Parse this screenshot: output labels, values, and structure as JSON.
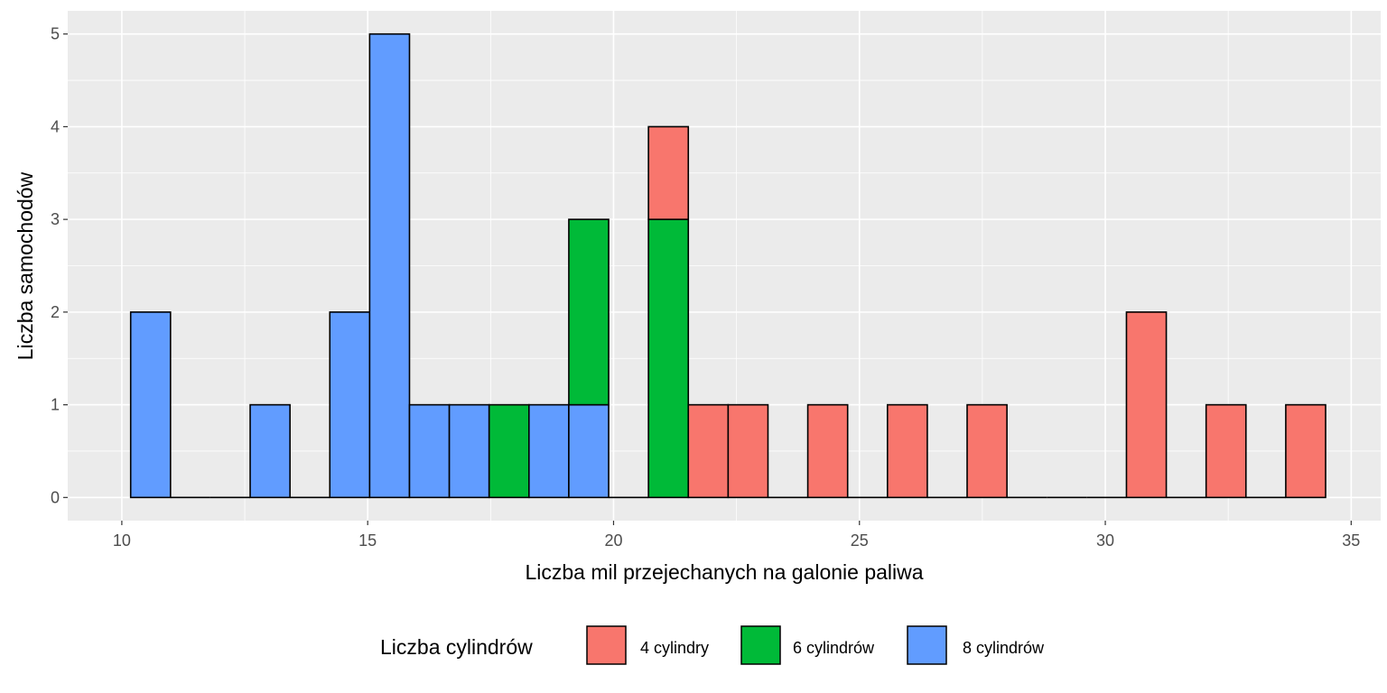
{
  "chart_data": {
    "type": "bar",
    "subtype": "stacked-histogram",
    "title": "",
    "xlabel": "Liczba mil przejechanych na galonie paliwa",
    "ylabel": "Liczba samochodów",
    "xlim": [
      8.9,
      35.6
    ],
    "ylim": [
      -0.25,
      5.25
    ],
    "x_ticks": [
      10,
      15,
      20,
      25,
      30,
      35
    ],
    "y_ticks": [
      0,
      1,
      2,
      3,
      4,
      5
    ],
    "bin_width": 0.81,
    "bin_start": 10.18,
    "bin_count": 30,
    "series": [
      {
        "name": "4 cylindry",
        "color": "#F8766D",
        "counts": [
          0,
          0,
          0,
          0,
          0,
          0,
          0,
          0,
          0,
          0,
          0,
          0,
          0,
          1,
          1,
          1,
          0,
          1,
          0,
          1,
          0,
          1,
          0,
          0,
          0,
          2,
          0,
          1,
          0,
          1
        ]
      },
      {
        "name": "6 cylindrów",
        "color": "#00BA38",
        "counts": [
          0,
          0,
          0,
          0,
          0,
          0,
          0,
          0,
          0,
          1,
          0,
          2,
          0,
          3,
          0,
          0,
          0,
          0,
          0,
          0,
          0,
          0,
          0,
          0,
          0,
          0,
          0,
          0,
          0,
          0
        ]
      },
      {
        "name": "8 cylindrów",
        "color": "#619CFF",
        "counts": [
          2,
          0,
          0,
          1,
          0,
          2,
          5,
          1,
          1,
          0,
          1,
          1,
          0,
          0,
          0,
          0,
          0,
          0,
          0,
          0,
          0,
          0,
          0,
          0,
          0,
          0,
          0,
          0,
          0,
          0
        ]
      }
    ],
    "grid": true,
    "legend": {
      "title": "Liczba cylindrów",
      "position": "bottom",
      "labels": [
        "4 cylindry",
        "6 cylindrów",
        "8 cylindrów"
      ]
    },
    "panel_background": "#EBEBEB",
    "grid_color": "#FFFFFF",
    "bar_outline": "#000000"
  }
}
